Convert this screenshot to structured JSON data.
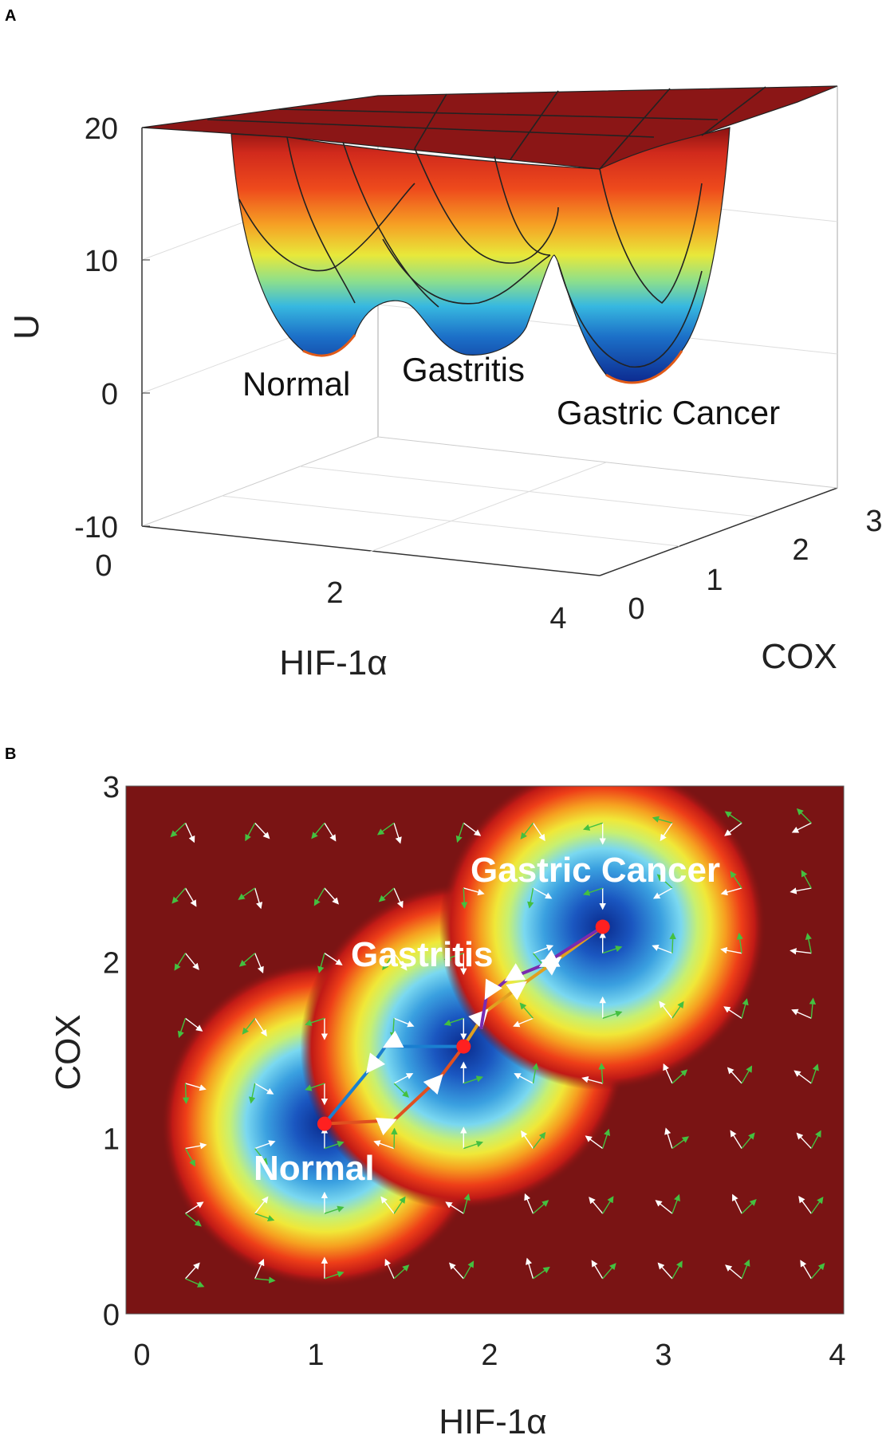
{
  "panel_a_label": "A",
  "panel_b_label": "B",
  "colors": {
    "landscape_top": "#7a1414",
    "landscape_low": "#0a2a8c",
    "normal_path": "#e05020",
    "reverse_path": "#1a7fd0",
    "cancer_path": "#e0a020",
    "regress_path": "#7a2bb0",
    "state_point": "#ff2020",
    "force_white": "#ffffff",
    "force_green": "#44c040"
  },
  "chart_data": [
    {
      "type": "surface",
      "panel": "A",
      "zlabel": "U",
      "xlabel": "HIF-1α",
      "ylabel": "COX",
      "zlim": [
        -10,
        20
      ],
      "zticks": [
        "20",
        "10",
        "0",
        "-10"
      ],
      "xticks": [
        "0",
        "2",
        "4"
      ],
      "yticks": [
        "0",
        "1",
        "2",
        "3"
      ],
      "xlim": [
        0,
        4
      ],
      "ylim": [
        0,
        3
      ],
      "plateau_U": 20,
      "minima": [
        {
          "label": "Normal",
          "hif": 1.05,
          "cox": 1.08,
          "U": 2
        },
        {
          "label": "Gastritis",
          "hif": 1.85,
          "cox": 1.52,
          "U": 2
        },
        {
          "label": "Gastric Cancer",
          "hif": 2.65,
          "cox": 2.2,
          "U": 0.5
        }
      ]
    },
    {
      "type": "heatmap",
      "panel": "B",
      "xlabel": "HIF-1α",
      "ylabel": "COX",
      "xlim": [
        0,
        4
      ],
      "ylim": [
        0,
        3
      ],
      "xticks": [
        "0",
        "1",
        "2",
        "3",
        "4"
      ],
      "yticks": [
        "0",
        "1",
        "2",
        "3"
      ],
      "states": [
        {
          "label": "Normal",
          "hif": 1.05,
          "cox": 1.08
        },
        {
          "label": "Gastritis",
          "hif": 1.85,
          "cox": 1.52
        },
        {
          "label": "Gastric Cancer",
          "hif": 2.65,
          "cox": 2.2
        }
      ],
      "paths": [
        {
          "color_key": "normal_path",
          "points": [
            [
              1.05,
              1.08
            ],
            [
              1.45,
              1.1
            ],
            [
              1.72,
              1.35
            ],
            [
              1.85,
              1.52
            ]
          ]
        },
        {
          "color_key": "reverse_path",
          "points": [
            [
              1.85,
              1.52
            ],
            [
              1.4,
              1.52
            ],
            [
              1.3,
              1.38
            ],
            [
              1.05,
              1.08
            ]
          ]
        },
        {
          "color_key": "cancer_path",
          "points": [
            [
              1.85,
              1.52
            ],
            [
              1.98,
              1.72
            ],
            [
              2.2,
              1.88
            ],
            [
              2.4,
              2.02
            ],
            [
              2.65,
              2.2
            ]
          ]
        },
        {
          "color_key": "regress_path",
          "points": [
            [
              2.65,
              2.2
            ],
            [
              2.3,
              1.98
            ],
            [
              2.1,
              1.9
            ],
            [
              1.98,
              1.8
            ],
            [
              1.95,
              1.62
            ]
          ]
        }
      ]
    }
  ]
}
